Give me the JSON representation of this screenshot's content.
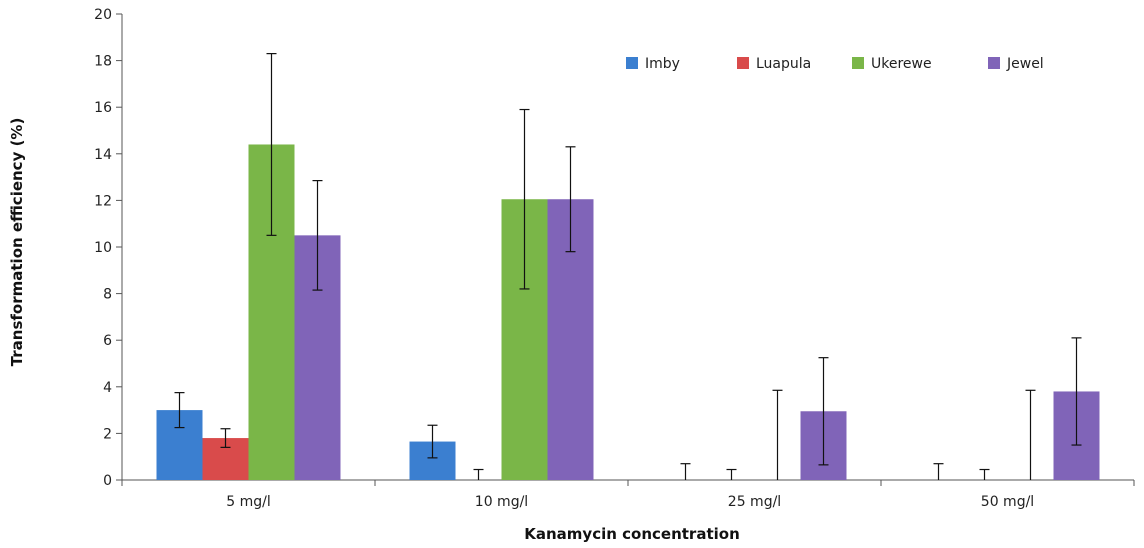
{
  "chart_data": {
    "type": "bar",
    "categories": [
      "5 mg/l",
      "10 mg/l",
      "25 mg/l",
      "50 mg/l"
    ],
    "series": [
      {
        "name": "Imby",
        "color": "#3b7fd0",
        "values": [
          3.0,
          1.65,
          0,
          0
        ],
        "error": [
          0.75,
          0.7,
          0.7,
          0.7
        ]
      },
      {
        "name": "Luapula",
        "color": "#d94b4b",
        "values": [
          1.8,
          0,
          0,
          0
        ],
        "error": [
          0.4,
          0.45,
          0.45,
          0.45
        ]
      },
      {
        "name": "Ukerewe",
        "color": "#7ab648",
        "values": [
          14.4,
          12.05,
          0,
          0
        ],
        "error": [
          3.9,
          3.85,
          3.85,
          3.85
        ]
      },
      {
        "name": "Jewel",
        "color": "#8064b8",
        "values": [
          10.5,
          12.05,
          2.95,
          3.8
        ],
        "error": [
          2.35,
          2.25,
          2.3,
          2.3
        ]
      }
    ],
    "xlabel": "Kanamycin concentration",
    "ylabel": "Transformation efficiency (%)",
    "ylim": [
      0,
      20
    ],
    "yticks": [
      0,
      2,
      4,
      6,
      8,
      10,
      12,
      14,
      16,
      18,
      20
    ],
    "legend_position": "top-right",
    "grid": false
  }
}
